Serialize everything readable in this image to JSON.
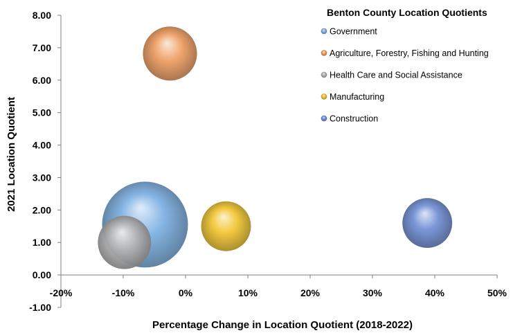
{
  "chart_data": {
    "type": "scatter",
    "variant": "bubble",
    "title": "",
    "xlabel": "Percentage Change in Location Quotient (2018-2022)",
    "ylabel": "2021 Location Quotient",
    "xlim": [
      -20,
      50
    ],
    "ylim": [
      -1,
      8
    ],
    "x_ticks": [
      "-20%",
      "-10%",
      "0%",
      "10%",
      "20%",
      "30%",
      "40%",
      "50%"
    ],
    "y_ticks": [
      "-1.00",
      "0.00",
      "1.00",
      "2.00",
      "3.00",
      "4.00",
      "5.00",
      "6.00",
      "7.00",
      "8.00"
    ],
    "grid": false,
    "legend": {
      "title": "Benton County Location Quotients",
      "position": "top-right"
    },
    "series": [
      {
        "name": "Government",
        "x": -6.5,
        "y": 1.55,
        "size": 1.0,
        "color": "#7fb2e3"
      },
      {
        "name": "Agriculture, Forestry, Fishing and Hunting",
        "x": -2.5,
        "y": 6.82,
        "size": 0.63,
        "color": "#f0a065"
      },
      {
        "name": "Health Care and Social Assistance",
        "x": -9.8,
        "y": 1.0,
        "size": 0.62,
        "color": "#b5b5b5"
      },
      {
        "name": "Manufacturing",
        "x": 6.5,
        "y": 1.5,
        "size": 0.58,
        "color": "#f2c634"
      },
      {
        "name": "Construction",
        "x": 38.8,
        "y": 1.6,
        "size": 0.58,
        "color": "#7391d6"
      }
    ]
  }
}
